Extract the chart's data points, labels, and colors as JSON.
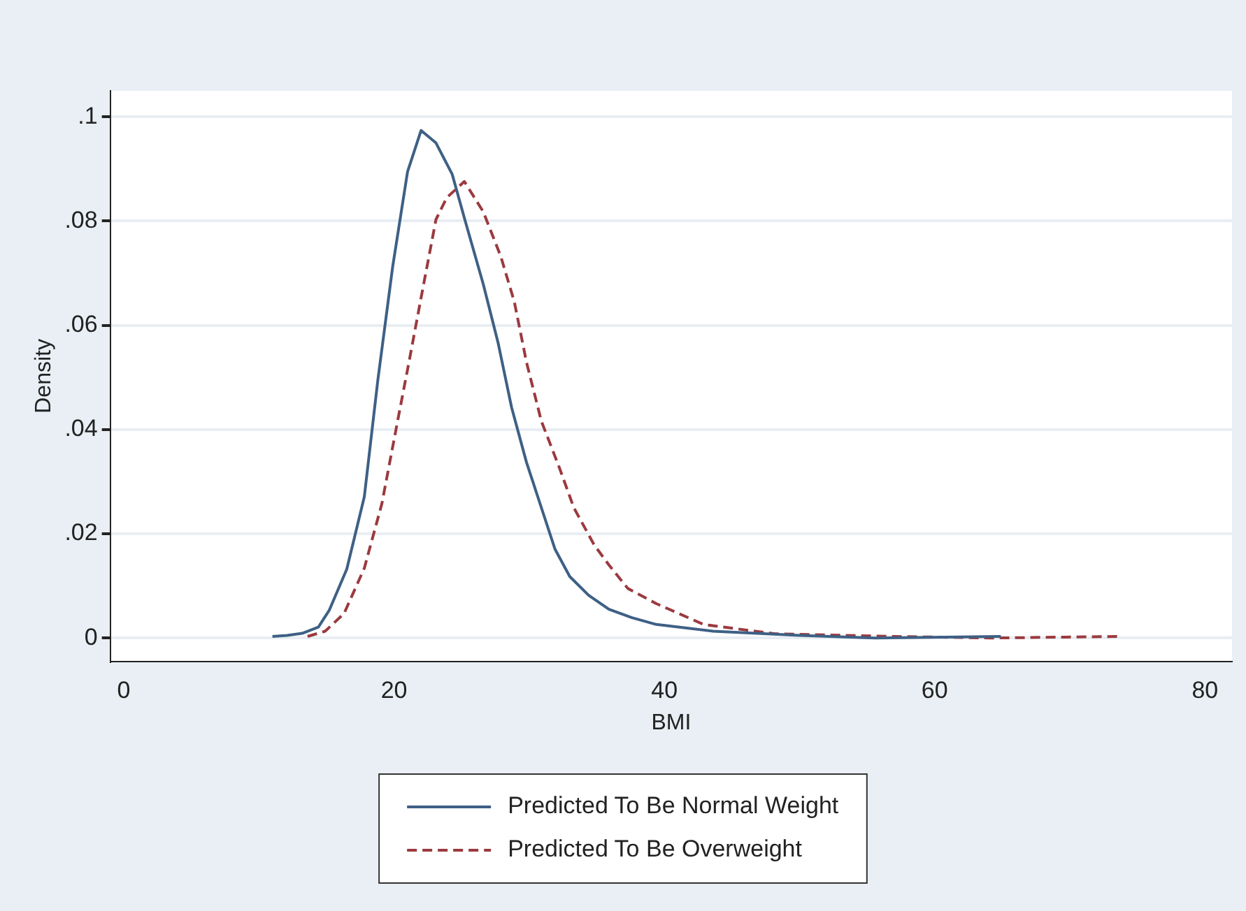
{
  "chart_data": {
    "type": "line",
    "xlabel": "BMI",
    "ylabel": "Density",
    "xlim": [
      -1,
      82
    ],
    "xticks": [
      0,
      20,
      40,
      60,
      80
    ],
    "ylim": [
      -0.0045,
      0.105
    ],
    "yticks": [
      {
        "value": 0,
        "label": "0"
      },
      {
        "value": 0.02,
        "label": ".02"
      },
      {
        "value": 0.04,
        "label": ".04"
      },
      {
        "value": 0.06,
        "label": ".06"
      },
      {
        "value": 0.08,
        "label": ".08"
      },
      {
        "value": 0.1,
        "label": ".1"
      }
    ],
    "grid": "y",
    "legend": "bottom",
    "marker": "none",
    "series": [
      {
        "name": "Predicted To Be Normal Weight",
        "color": "#3e6085",
        "line_style": "solid",
        "x": [
          11,
          12.1,
          13.2,
          14.4,
          15.2,
          16.5,
          17.8,
          18.8,
          19.9,
          21,
          22,
          23.1,
          24.3,
          25.3,
          26.6,
          27.7,
          28.7,
          29.8,
          30.9,
          31.9,
          33,
          34.4,
          35.9,
          37.6,
          39.4,
          43.6,
          50,
          55.6,
          64.9
        ],
        "values": [
          0.0003,
          0.0005,
          0.0009,
          0.0021,
          0.0053,
          0.0132,
          0.0271,
          0.0495,
          0.0713,
          0.0895,
          0.0974,
          0.095,
          0.089,
          0.0797,
          0.0679,
          0.0566,
          0.0442,
          0.0337,
          0.025,
          0.0171,
          0.0118,
          0.0082,
          0.0055,
          0.0039,
          0.0026,
          0.0013,
          0.0005,
          0,
          0.0003
        ]
      },
      {
        "name": "Predicted To Be Overweight",
        "color": "#9b3a3f",
        "line_style": "dashed",
        "x": [
          13.6,
          14.9,
          16.3,
          17.8,
          19.1,
          20.2,
          21.1,
          22,
          23.1,
          23.9,
          25.2,
          26.6,
          27.9,
          28.9,
          29.8,
          30.9,
          32.2,
          33.3,
          34.8,
          35.9,
          37.3,
          39.4,
          42.9,
          48.2,
          57.1,
          64.1,
          73.7
        ],
        "values": [
          0.0003,
          0.0013,
          0.0047,
          0.0134,
          0.0258,
          0.0408,
          0.0529,
          0.0653,
          0.0803,
          0.0845,
          0.0876,
          0.0818,
          0.0732,
          0.0645,
          0.0529,
          0.0416,
          0.0329,
          0.025,
          0.0179,
          0.014,
          0.0095,
          0.0066,
          0.0026,
          0.0008,
          0.0003,
          0,
          0.0003
        ]
      }
    ]
  }
}
